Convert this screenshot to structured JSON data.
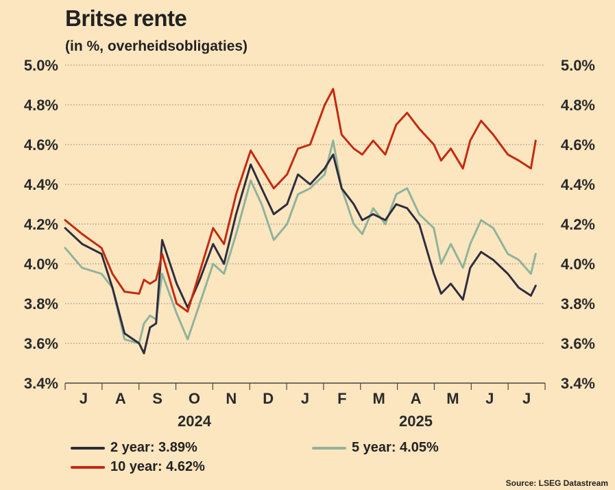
{
  "title": "Britse rente",
  "subtitle": "(in %, overheidsobligaties)",
  "source": "Source: LSEG Datastream",
  "chart_data": {
    "type": "line",
    "title": "Britse rente",
    "subtitle": "(in %, overheidsobligaties)",
    "ylim": [
      3.4,
      5.0
    ],
    "yticks": [
      3.4,
      3.6,
      3.8,
      4.0,
      4.2,
      4.4,
      4.6,
      4.8,
      5.0
    ],
    "ytick_labels": [
      "3.4%",
      "3.6%",
      "3.8%",
      "4.0%",
      "4.2%",
      "4.4%",
      "4.6%",
      "4.8%",
      "5.0%"
    ],
    "grid": true,
    "x_months": [
      "J",
      "A",
      "S",
      "O",
      "N",
      "D",
      "J",
      "F",
      "M",
      "A",
      "M",
      "J",
      "J"
    ],
    "x_years": [
      "2024",
      "2025"
    ],
    "x": [
      "2024-06-01",
      "2024-06-15",
      "2024-07-01",
      "2024-07-10",
      "2024-07-20",
      "2024-08-01",
      "2024-08-05",
      "2024-08-10",
      "2024-08-15",
      "2024-08-20",
      "2024-09-01",
      "2024-09-10",
      "2024-09-20",
      "2024-10-01",
      "2024-10-10",
      "2024-10-20",
      "2024-11-01",
      "2024-11-10",
      "2024-11-20",
      "2024-12-01",
      "2024-12-10",
      "2024-12-20",
      "2025-01-01",
      "2025-01-08",
      "2025-01-15",
      "2025-01-25",
      "2025-02-01",
      "2025-02-10",
      "2025-02-20",
      "2025-03-01",
      "2025-03-10",
      "2025-03-20",
      "2025-04-01",
      "2025-04-07",
      "2025-04-15",
      "2025-04-25",
      "2025-05-01",
      "2025-05-10",
      "2025-05-20",
      "2025-06-01",
      "2025-06-10",
      "2025-06-20",
      "2025-06-24"
    ],
    "series": [
      {
        "name": "2 year: 3.89%",
        "color": "#2e2c3e",
        "values": [
          4.18,
          4.1,
          4.05,
          3.88,
          3.65,
          3.6,
          3.55,
          3.68,
          3.7,
          4.12,
          3.9,
          3.78,
          3.92,
          4.1,
          4.0,
          4.25,
          4.5,
          4.38,
          4.25,
          4.3,
          4.45,
          4.4,
          4.48,
          4.55,
          4.38,
          4.3,
          4.22,
          4.25,
          4.22,
          4.3,
          4.28,
          4.2,
          3.95,
          3.85,
          3.9,
          3.82,
          3.98,
          4.06,
          4.02,
          3.95,
          3.88,
          3.84,
          3.89
        ]
      },
      {
        "name": "5 year: 4.05%",
        "color": "#8fb39a",
        "values": [
          4.08,
          3.98,
          3.95,
          3.88,
          3.62,
          3.6,
          3.7,
          3.74,
          3.72,
          3.95,
          3.75,
          3.62,
          3.8,
          4.0,
          3.95,
          4.15,
          4.42,
          4.3,
          4.12,
          4.2,
          4.35,
          4.38,
          4.45,
          4.62,
          4.38,
          4.2,
          4.15,
          4.28,
          4.2,
          4.35,
          4.38,
          4.25,
          4.18,
          4.0,
          4.1,
          3.98,
          4.1,
          4.22,
          4.18,
          4.05,
          4.02,
          3.95,
          4.05
        ]
      },
      {
        "name": "10 year: 4.62%",
        "color": "#c42a10",
        "values": [
          4.22,
          4.15,
          4.08,
          3.95,
          3.86,
          3.85,
          3.92,
          3.9,
          3.92,
          4.05,
          3.8,
          3.76,
          3.96,
          4.18,
          4.1,
          4.35,
          4.57,
          4.48,
          4.38,
          4.45,
          4.58,
          4.6,
          4.8,
          4.88,
          4.65,
          4.58,
          4.55,
          4.62,
          4.55,
          4.7,
          4.76,
          4.68,
          4.6,
          4.52,
          4.58,
          4.48,
          4.62,
          4.72,
          4.65,
          4.55,
          4.52,
          4.48,
          4.62
        ]
      }
    ]
  },
  "legend": [
    {
      "label": "2 year: 3.89%",
      "color": "#2e2c3e"
    },
    {
      "label": "5 year: 4.05%",
      "color": "#8fb39a"
    },
    {
      "label": "10 year: 4.62%",
      "color": "#c42a10"
    }
  ]
}
